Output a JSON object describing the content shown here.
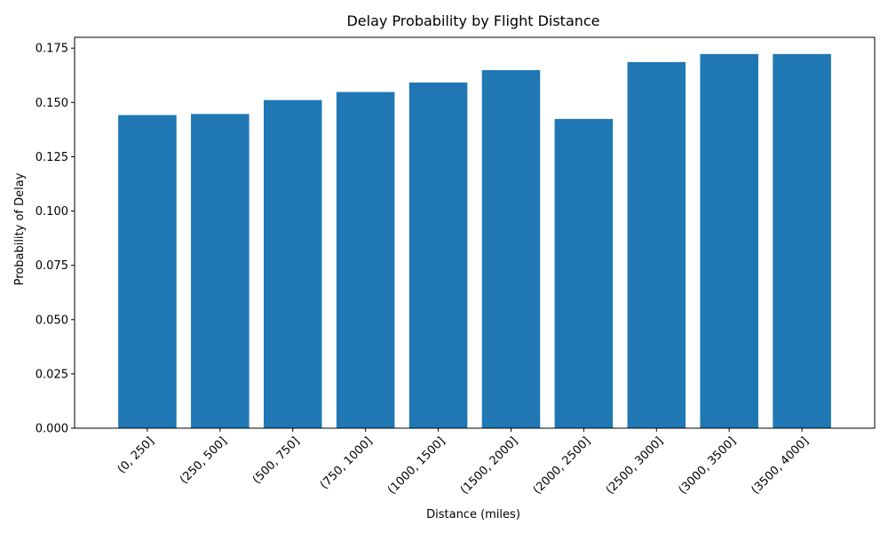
{
  "chart_data": {
    "type": "bar",
    "title": "Delay Probability by Flight Distance",
    "xlabel": "Distance (miles)",
    "ylabel": "Probability of Delay",
    "categories": [
      "(0, 250]",
      "(250, 500]",
      "(500, 750]",
      "(750, 1000]",
      "(1000, 1500]",
      "(1500, 2000]",
      "(2000, 2500]",
      "(2500, 3000]",
      "(3000, 3500]",
      "(3500, 4000]"
    ],
    "values": [
      0.1442,
      0.1447,
      0.1511,
      0.1548,
      0.1592,
      0.1649,
      0.1424,
      0.1686,
      0.1723,
      0.1723
    ],
    "ylim": [
      0,
      0.18
    ],
    "yticks": [
      0.0,
      0.025,
      0.05,
      0.075,
      0.1,
      0.125,
      0.15,
      0.175
    ],
    "ytick_labels": [
      "0.000",
      "0.025",
      "0.050",
      "0.075",
      "0.100",
      "0.125",
      "0.150",
      "0.175"
    ],
    "grid": false,
    "bar_color": "#1f77b4"
  }
}
